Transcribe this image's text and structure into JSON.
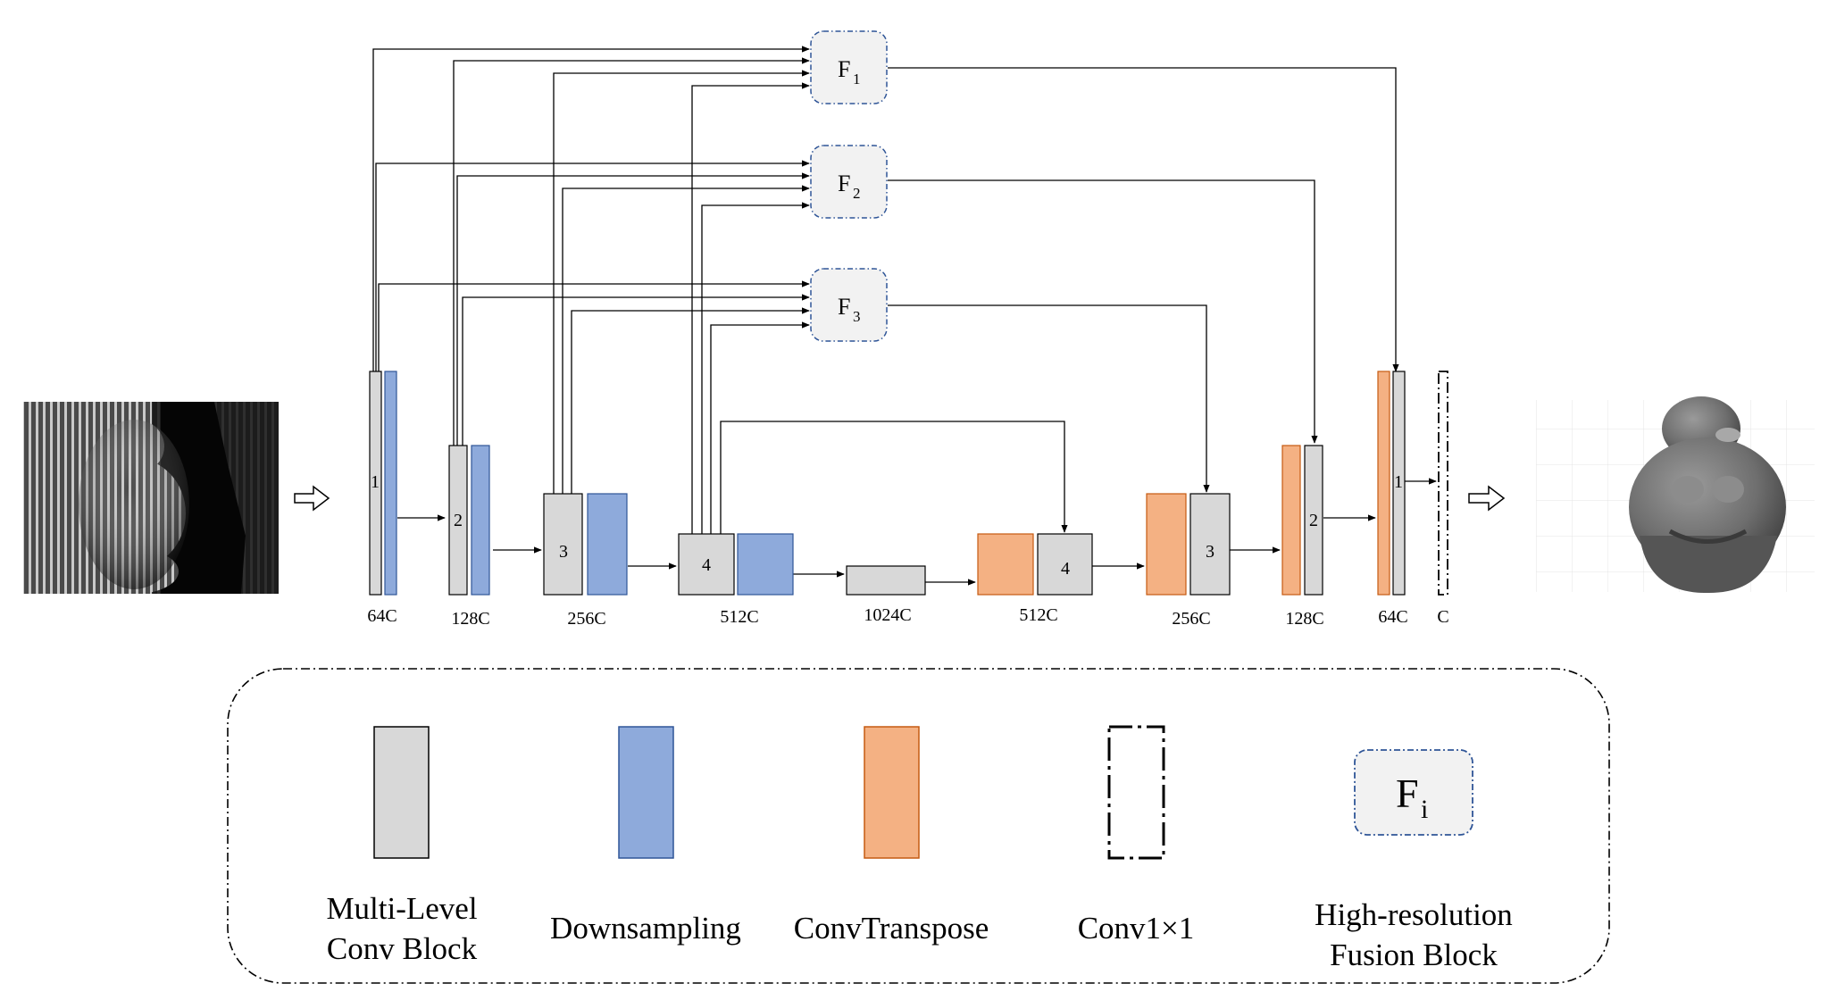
{
  "colors": {
    "conv_block": "#d8d8d8",
    "downsampling": "#8eaadb",
    "downsampling_border": "#2f5597",
    "convtranspose": "#f4b183",
    "convtranspose_border": "#c55a11",
    "fusion_fill": "#f2f2f2",
    "fusion_border": "#2f5597",
    "line": "#000000"
  },
  "fusion_blocks": [
    {
      "base": "F",
      "sub": "1"
    },
    {
      "base": "F",
      "sub": "2"
    },
    {
      "base": "F",
      "sub": "3"
    }
  ],
  "encoder_levels": [
    {
      "num": "1",
      "channels": "64C"
    },
    {
      "num": "2",
      "channels": "128C"
    },
    {
      "num": "3",
      "channels": "256C"
    },
    {
      "num": "4",
      "channels": "512C"
    }
  ],
  "bottleneck": {
    "channels": "1024C"
  },
  "decoder_levels": [
    {
      "num": "4",
      "channels": "512C"
    },
    {
      "num": "3",
      "channels": "256C"
    },
    {
      "num": "2",
      "channels": "128C"
    },
    {
      "num": "1",
      "channels": "64C"
    }
  ],
  "output_conv": {
    "channels": "C"
  },
  "legend": {
    "conv_block": [
      "Multi-Level",
      "Conv Block"
    ],
    "downsampling": "Downsampling",
    "convtranspose": "ConvTranspose",
    "conv1x1": "Conv1×1",
    "fusion_symbol": {
      "base": "F",
      "sub": "i"
    },
    "fusion": [
      "High-resolution",
      "Fusion Block"
    ]
  }
}
